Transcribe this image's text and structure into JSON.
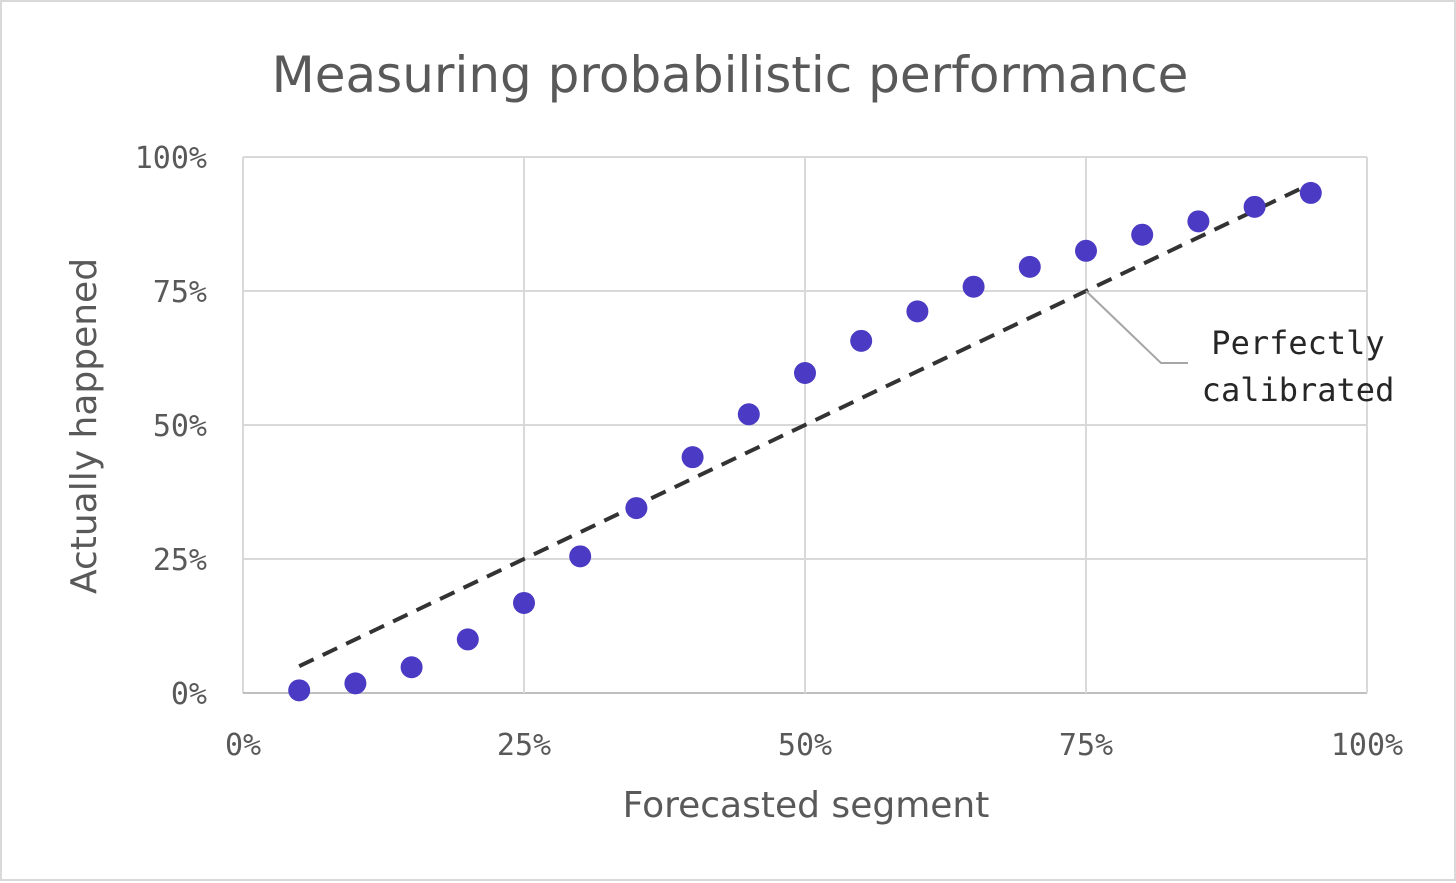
{
  "chart_data": {
    "type": "scatter",
    "title": "Measuring probabilistic performance",
    "xlabel": "Forecasted segment",
    "ylabel": "Actually happened",
    "xlim": [
      0,
      100
    ],
    "ylim": [
      0,
      100
    ],
    "x_ticks": [
      "0%",
      "25%",
      "50%",
      "75%",
      "100%"
    ],
    "y_ticks": [
      "0%",
      "25%",
      "50%",
      "75%",
      "100%"
    ],
    "tick_values": [
      0,
      25,
      50,
      75,
      100
    ],
    "grid": true,
    "point_color": "#4b3bc4",
    "line_color": "#333333",
    "points": {
      "x": [
        5,
        10,
        15,
        20,
        25,
        30,
        35,
        40,
        45,
        50,
        55,
        60,
        65,
        70,
        75,
        80,
        85,
        90,
        95
      ],
      "y": [
        0.5,
        1.8,
        4.8,
        10,
        16.8,
        25.5,
        34.5,
        44,
        52,
        59.7,
        65.7,
        71.2,
        75.8,
        79.5,
        82.5,
        85.5,
        88,
        90.7,
        93.3
      ]
    },
    "reference_line": {
      "x": [
        5,
        95
      ],
      "y": [
        5,
        95
      ],
      "style": "dashed"
    },
    "annotation": {
      "lines": [
        "Perfectly",
        "calibrated"
      ],
      "points_to": [
        75,
        75
      ]
    }
  }
}
